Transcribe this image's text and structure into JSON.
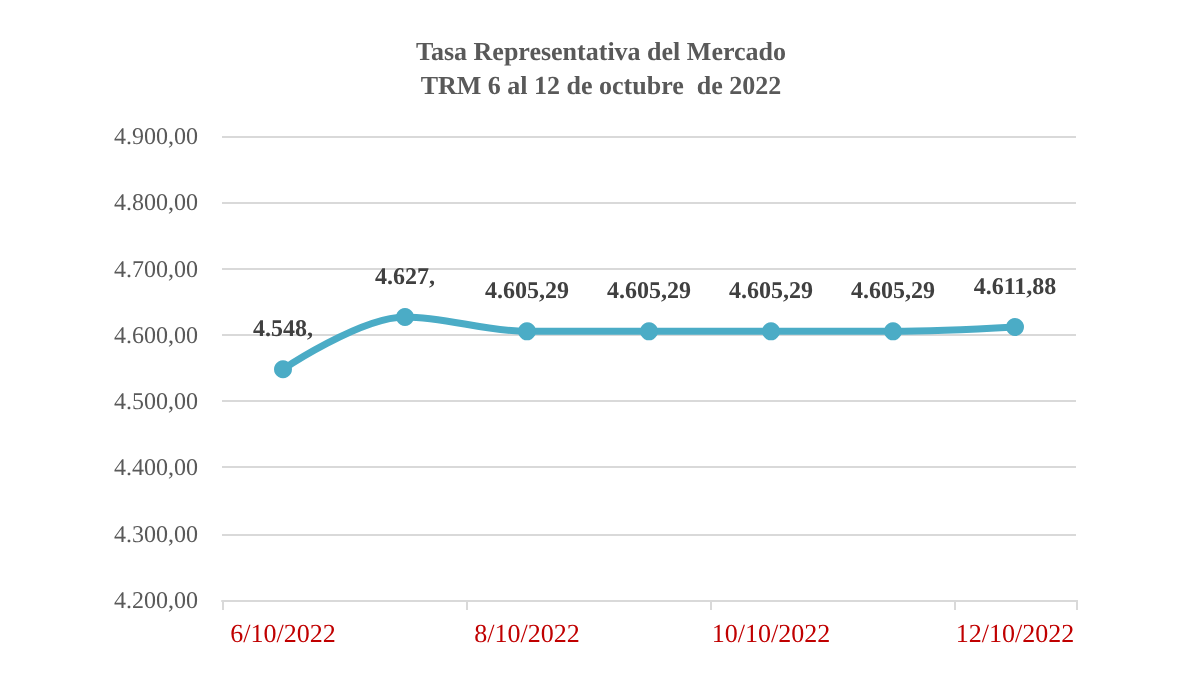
{
  "chart_data": {
    "type": "line",
    "title": "Tasa Representativa del Mercado\nTRM 6 al 12 de octubre  de 2022",
    "categories": [
      "6/10/2022",
      null,
      "8/10/2022",
      null,
      "10/10/2022",
      null,
      "12/10/2022"
    ],
    "series": [
      {
        "color": "#4bacc6",
        "values": [
          4548,
          4627,
          4605.29,
          4605.29,
          4605.29,
          4605.29,
          4611.88
        ],
        "value_labels": [
          "4.548,",
          "4.627,",
          "4.605,29",
          "4.605,29",
          "4.605,29",
          "4.605,29",
          "4.611,88"
        ]
      }
    ],
    "ylim": [
      4200,
      4900
    ],
    "yticks": [
      {
        "value": 4200,
        "label": "4.200,00"
      },
      {
        "value": 4300,
        "label": "4.300,00"
      },
      {
        "value": 4400,
        "label": "4.400,00"
      },
      {
        "value": 4500,
        "label": "4.500,00"
      },
      {
        "value": 4600,
        "label": "4.600,00"
      },
      {
        "value": 4700,
        "label": "4.700,00"
      },
      {
        "value": 4800,
        "label": "4.800,00"
      },
      {
        "value": 4900,
        "label": "4.900,00"
      }
    ],
    "grid": "y",
    "marker": "circle",
    "line_style": "solid"
  }
}
